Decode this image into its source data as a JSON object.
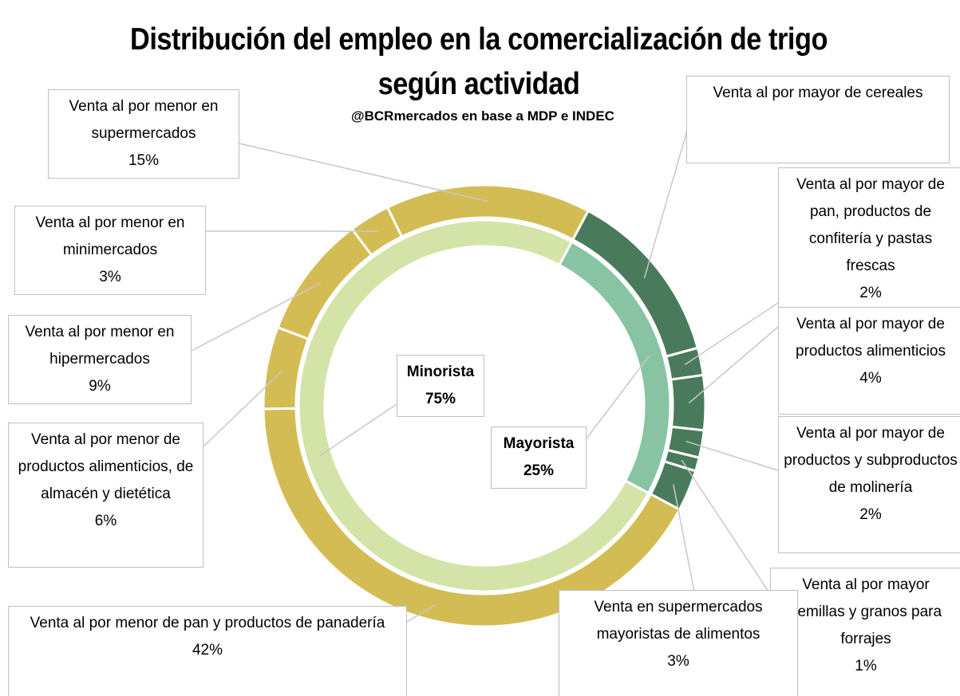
{
  "chart_data": {
    "type": "sunburst",
    "title": "Distribución del empleo en la comercialización de trigo según actividad",
    "subtitle": "@BCRmercados en base a MDP e INDEC",
    "start_angle": 28,
    "rings": [
      {
        "categories": [
          "Mayorista",
          "Minorista"
        ],
        "values": [
          25,
          75
        ],
        "value_labels": [
          "25%",
          "75%"
        ],
        "colors": [
          "#88c4a4",
          "#d4e4a8"
        ]
      },
      {
        "categories": [
          "Venta al por mayor de cereales",
          "Venta al por mayor de pan, productos de confitería y pastas frescas",
          "Venta al por mayor de productos alimenticios",
          "Venta al por mayor de productos y subproductos de molinería",
          "Venta al por mayor semillas y granos para forrajes",
          "Venta en supermercados mayoristas de alimentos",
          "Venta al por menor de pan y productos de panadería",
          "Venta al por menor de productos alimenticios, de almacén y dietética",
          "Venta al por menor en hipermercados",
          "Venta al por menor en minimercados",
          "Venta al por menor en supermercados"
        ],
        "values": [
          13,
          2,
          4,
          2,
          1,
          3,
          42,
          6,
          9,
          3,
          15
        ],
        "value_labels": [
          null,
          "2%",
          "4%",
          "2%",
          "1%",
          "3%",
          "42%",
          "6%",
          "9%",
          "3%",
          "15%"
        ],
        "colors": [
          "#4a7a5c",
          "#4a7a5c",
          "#4a7a5c",
          "#4a7a5c",
          "#4a7a5c",
          "#4a7a5c",
          "#d4bc55",
          "#d4bc55",
          "#d4bc55",
          "#d4bc55",
          "#d4bc55"
        ]
      }
    ]
  }
}
